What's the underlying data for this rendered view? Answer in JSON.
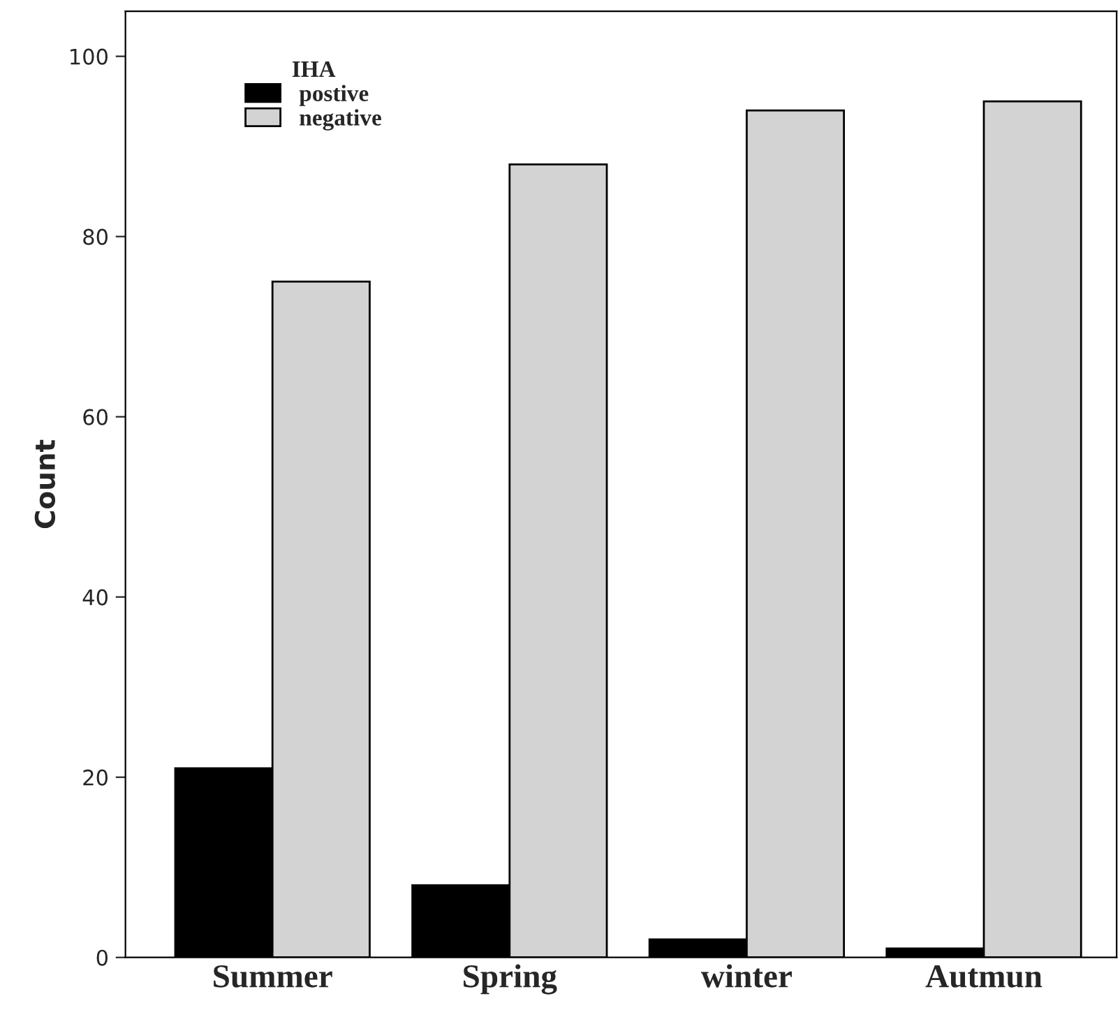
{
  "chart_data": {
    "type": "bar",
    "ylabel": "Count",
    "legend_title": "IHA",
    "categories": [
      "Summer",
      "Spring",
      "winter",
      "Autmun"
    ],
    "series": [
      {
        "name": "postive",
        "color": "#000000",
        "values": [
          21,
          8,
          2,
          1
        ]
      },
      {
        "name": "negative",
        "color": "#d3d3d3",
        "values": [
          75,
          88,
          94,
          95
        ]
      }
    ],
    "ylim": [
      0,
      105
    ],
    "yticks": [
      0,
      20,
      40,
      60,
      80,
      100
    ],
    "grid": false,
    "legend": "top left"
  }
}
